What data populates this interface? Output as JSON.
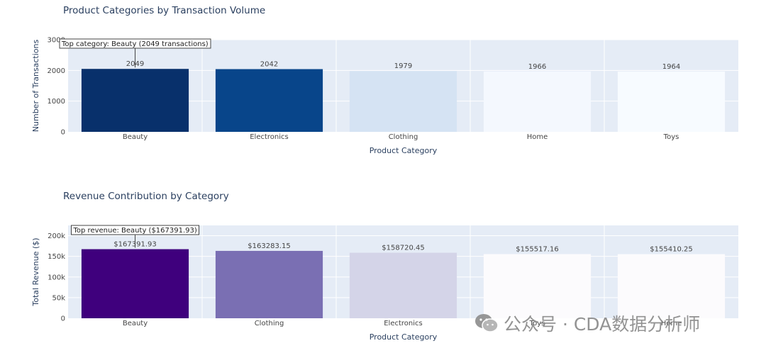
{
  "chart_data": [
    {
      "type": "bar",
      "title": "Product Categories by Transaction Volume",
      "xlabel": "Product Category",
      "ylabel": "Number of Transactions",
      "categories": [
        "Beauty",
        "Electronics",
        "Clothing",
        "Home",
        "Toys"
      ],
      "values": [
        2049,
        2042,
        1979,
        1966,
        1964
      ],
      "value_labels": [
        "2049",
        "2042",
        "1979",
        "1966",
        "1964"
      ],
      "ylim": [
        0,
        3000
      ],
      "yticks": [
        0,
        1000,
        2000,
        3000
      ],
      "ytick_labels": [
        "0",
        "1000",
        "2000",
        "3000"
      ],
      "bar_colors": [
        "#08306b",
        "#08458a",
        "#d5e3f3",
        "#f4f8fe",
        "#f7fbff"
      ],
      "annotation": "Top category: Beauty (2049 transactions)",
      "grid": true
    },
    {
      "type": "bar",
      "title": "Revenue Contribution by Category",
      "xlabel": "Product Category",
      "ylabel": "Total Revenue ($)",
      "categories": [
        "Beauty",
        "Clothing",
        "Electronics",
        "Toys",
        "Home"
      ],
      "values": [
        167391.93,
        163283.15,
        158720.45,
        155517.16,
        155410.25
      ],
      "value_labels": [
        "$167391.93",
        "$163283.15",
        "$158720.45",
        "$155517.16",
        "$155410.25"
      ],
      "ylim": [
        0,
        225000
      ],
      "yticks": [
        0,
        50000,
        100000,
        150000,
        200000
      ],
      "ytick_labels": [
        "0",
        "50k",
        "100k",
        "150k",
        "200k"
      ],
      "bar_colors": [
        "#3f007d",
        "#7a6fb3",
        "#d4d4e8",
        "#fcfbfd",
        "#fcfbfd"
      ],
      "annotation": "Top revenue: Beauty ($167391.93)",
      "grid": true
    }
  ],
  "watermark": {
    "text": "公众号 · CDA数据分析师",
    "icon": "wechat-icon"
  }
}
